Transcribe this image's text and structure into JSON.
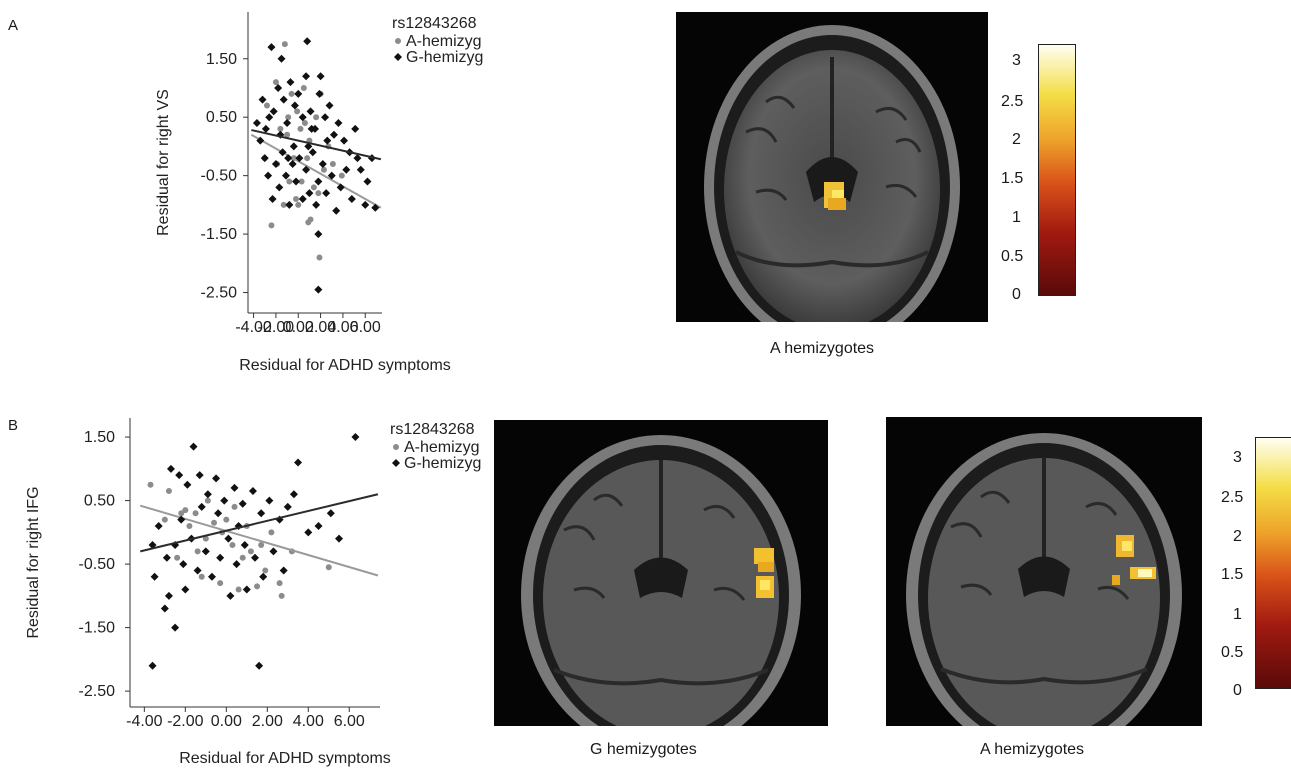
{
  "panel_labels": {
    "a": "A",
    "b": "B"
  },
  "colorbar_ticks": [
    "3",
    "2.5",
    "2",
    "1.5",
    "1",
    "0.5",
    "0"
  ],
  "brain_captions": {
    "a": "A hemizygotes",
    "b_left": "G hemizygotes",
    "b_right": "A hemizygotes"
  },
  "colors": {
    "a_hemizyg": "#8c8c8c",
    "g_hemizyg": "#111111",
    "fit_a": "#9a9a9a",
    "fit_g": "#2b2b2b"
  },
  "chart_data": [
    {
      "type": "scatter",
      "title": "",
      "xlabel": "Residual for ADHD symptoms",
      "ylabel": "Residual for right VS",
      "legend_title": "rs12843268",
      "legend_position": "top-right outside",
      "x_ticks": [
        "-4.00",
        "-2.00",
        "0.00",
        "2.00",
        "4.00",
        "6.00"
      ],
      "y_ticks": [
        "1.50",
        "0.50",
        "-0.50",
        "-1.50",
        "-2.50"
      ],
      "xlim": [
        -4.5,
        7.5
      ],
      "ylim": [
        -2.85,
        2.3
      ],
      "grid": false,
      "series": [
        {
          "name": "A-hemizyg",
          "marker": "circle",
          "points": [
            [
              -2.4,
              -1.35
            ],
            [
              -1.2,
              1.75
            ],
            [
              -1.0,
              0.2
            ],
            [
              0.0,
              -1.0
            ],
            [
              0.9,
              -1.3
            ],
            [
              1.1,
              -1.25
            ],
            [
              1.9,
              -1.9
            ],
            [
              -0.6,
              0.9
            ],
            [
              0.3,
              -0.6
            ],
            [
              1.4,
              -0.7
            ],
            [
              -1.6,
              0.3
            ],
            [
              -0.4,
              -0.2
            ],
            [
              0.6,
              0.4
            ],
            [
              2.3,
              -0.4
            ],
            [
              -2.8,
              0.7
            ],
            [
              -0.2,
              -0.9
            ],
            [
              1.0,
              0.1
            ],
            [
              -1.9,
              -0.3
            ],
            [
              0.5,
              1.0
            ],
            [
              3.1,
              -0.3
            ],
            [
              -0.8,
              -0.6
            ],
            [
              1.6,
              0.5
            ],
            [
              -2.0,
              1.1
            ],
            [
              0.2,
              0.3
            ],
            [
              2.7,
              0.0
            ],
            [
              -1.3,
              -1.0
            ],
            [
              3.9,
              -0.5
            ],
            [
              -0.9,
              0.5
            ],
            [
              0.8,
              -0.2
            ],
            [
              -3.0,
              -0.2
            ],
            [
              1.8,
              -0.8
            ],
            [
              -0.1,
              0.6
            ],
            [
              2.0,
              0.9
            ]
          ],
          "fit": [
            [
              -4.2,
              0.2
            ],
            [
              7.4,
              -1.05
            ]
          ]
        },
        {
          "name": "G-hemizyg",
          "marker": "diamond",
          "points": [
            [
              -2.4,
              1.7
            ],
            [
              -1.5,
              1.5
            ],
            [
              0.8,
              1.8
            ],
            [
              2.0,
              1.2
            ],
            [
              -2.6,
              0.5
            ],
            [
              -2.2,
              0.6
            ],
            [
              -1.8,
              1.0
            ],
            [
              -1.3,
              0.8
            ],
            [
              -1.0,
              0.4
            ],
            [
              -0.7,
              1.1
            ],
            [
              -0.3,
              0.7
            ],
            [
              0.0,
              0.9
            ],
            [
              0.4,
              0.5
            ],
            [
              0.7,
              1.2
            ],
            [
              1.1,
              0.6
            ],
            [
              1.5,
              0.3
            ],
            [
              1.9,
              0.9
            ],
            [
              2.4,
              0.5
            ],
            [
              2.8,
              0.7
            ],
            [
              3.2,
              0.2
            ],
            [
              3.6,
              0.4
            ],
            [
              4.1,
              0.1
            ],
            [
              4.6,
              -0.1
            ],
            [
              5.1,
              0.3
            ],
            [
              5.6,
              -0.4
            ],
            [
              6.2,
              -0.6
            ],
            [
              6.6,
              -0.2
            ],
            [
              -3.7,
              0.4
            ],
            [
              -3.4,
              0.1
            ],
            [
              -3.0,
              -0.2
            ],
            [
              -2.7,
              -0.5
            ],
            [
              -2.3,
              -0.9
            ],
            [
              -2.0,
              -0.3
            ],
            [
              -1.7,
              -0.7
            ],
            [
              -1.4,
              -0.1
            ],
            [
              -1.1,
              -0.5
            ],
            [
              -0.8,
              -1.0
            ],
            [
              -0.5,
              -0.3
            ],
            [
              -0.2,
              -0.6
            ],
            [
              0.1,
              -0.2
            ],
            [
              0.4,
              -0.9
            ],
            [
              0.7,
              -0.4
            ],
            [
              1.0,
              -0.8
            ],
            [
              1.3,
              -0.1
            ],
            [
              1.6,
              -1.0
            ],
            [
              1.8,
              -0.6
            ],
            [
              2.2,
              -0.3
            ],
            [
              2.5,
              -0.8
            ],
            [
              3.0,
              -0.5
            ],
            [
              3.4,
              -1.1
            ],
            [
              3.8,
              -0.7
            ],
            [
              4.3,
              -0.4
            ],
            [
              4.8,
              -0.9
            ],
            [
              5.3,
              -0.2
            ],
            [
              6.0,
              -1.0
            ],
            [
              6.9,
              -1.05
            ],
            [
              1.8,
              -1.5
            ],
            [
              1.8,
              -2.45
            ],
            [
              -3.2,
              0.8
            ],
            [
              -1.6,
              0.2
            ],
            [
              -0.4,
              0.0
            ],
            [
              0.9,
              0.0
            ],
            [
              2.6,
              0.1
            ],
            [
              -2.9,
              0.3
            ],
            [
              -0.9,
              -0.2
            ],
            [
              1.2,
              0.3
            ]
          ],
          "fit": [
            [
              -4.2,
              0.28
            ],
            [
              7.4,
              -0.22
            ]
          ]
        }
      ]
    },
    {
      "type": "scatter",
      "title": "",
      "xlabel": "Residual for ADHD symptoms",
      "ylabel": "Residual for right IFG",
      "legend_title": "rs12843268",
      "legend_position": "top-right outside",
      "x_ticks": [
        "-4.00",
        "-2.00",
        "0.00",
        "2.00",
        "4.00",
        "6.00"
      ],
      "y_ticks": [
        "1.50",
        "0.50",
        "-0.50",
        "-1.50",
        "-2.50"
      ],
      "xlim": [
        -4.7,
        7.5
      ],
      "ylim": [
        -2.75,
        1.8
      ],
      "grid": false,
      "series": [
        {
          "name": "A-hemizyg",
          "marker": "circle",
          "points": [
            [
              -3.7,
              0.75
            ],
            [
              -2.8,
              0.65
            ],
            [
              -2.0,
              0.35
            ],
            [
              -1.5,
              0.3
            ],
            [
              -1.0,
              -0.1
            ],
            [
              -0.6,
              0.15
            ],
            [
              -0.2,
              0.0
            ],
            [
              0.3,
              -0.2
            ],
            [
              0.8,
              -0.4
            ],
            [
              1.2,
              -0.3
            ],
            [
              1.9,
              -0.6
            ],
            [
              2.6,
              -0.8
            ],
            [
              3.2,
              -0.3
            ],
            [
              -2.4,
              -0.4
            ],
            [
              -1.2,
              -0.7
            ],
            [
              -0.3,
              -0.8
            ],
            [
              0.6,
              -0.9
            ],
            [
              1.5,
              -0.85
            ],
            [
              -1.8,
              0.1
            ],
            [
              0.0,
              0.2
            ],
            [
              2.2,
              0.0
            ],
            [
              5.0,
              -0.55
            ],
            [
              2.7,
              -1.0
            ],
            [
              -0.9,
              0.5
            ],
            [
              1.0,
              0.1
            ],
            [
              -3.0,
              0.2
            ],
            [
              0.4,
              0.4
            ],
            [
              1.7,
              -0.2
            ],
            [
              -1.4,
              -0.3
            ],
            [
              -2.2,
              0.3
            ]
          ],
          "fit": [
            [
              -4.2,
              0.42
            ],
            [
              7.4,
              -0.68
            ]
          ]
        },
        {
          "name": "G-hemizyg",
          "marker": "diamond",
          "points": [
            [
              6.3,
              1.5
            ],
            [
              -1.6,
              1.35
            ],
            [
              -2.7,
              1.0
            ],
            [
              -2.3,
              0.9
            ],
            [
              -1.9,
              0.75
            ],
            [
              -1.3,
              0.9
            ],
            [
              -0.9,
              0.6
            ],
            [
              -0.5,
              0.85
            ],
            [
              -0.1,
              0.5
            ],
            [
              0.4,
              0.7
            ],
            [
              0.8,
              0.45
            ],
            [
              1.3,
              0.65
            ],
            [
              1.7,
              0.3
            ],
            [
              2.1,
              0.5
            ],
            [
              2.6,
              0.2
            ],
            [
              3.0,
              0.4
            ],
            [
              3.5,
              1.1
            ],
            [
              4.0,
              0.0
            ],
            [
              4.5,
              0.1
            ],
            [
              5.1,
              0.3
            ],
            [
              5.5,
              -0.1
            ],
            [
              -3.6,
              -0.2
            ],
            [
              -3.3,
              0.1
            ],
            [
              -2.9,
              -0.4
            ],
            [
              -2.5,
              -0.2
            ],
            [
              -2.1,
              -0.5
            ],
            [
              -1.7,
              -0.1
            ],
            [
              -1.4,
              -0.6
            ],
            [
              -1.0,
              -0.3
            ],
            [
              -0.7,
              -0.7
            ],
            [
              -0.3,
              -0.4
            ],
            [
              0.1,
              -0.1
            ],
            [
              0.5,
              -0.5
            ],
            [
              0.9,
              -0.2
            ],
            [
              1.4,
              -0.4
            ],
            [
              1.8,
              -0.7
            ],
            [
              2.3,
              -0.3
            ],
            [
              2.8,
              -0.6
            ],
            [
              -3.5,
              -0.7
            ],
            [
              -2.8,
              -1.0
            ],
            [
              -3.0,
              -1.2
            ],
            [
              -2.0,
              -0.9
            ],
            [
              -2.5,
              -1.5
            ],
            [
              0.2,
              -1.0
            ],
            [
              1.0,
              -0.9
            ],
            [
              -3.6,
              -2.1
            ],
            [
              1.6,
              -2.1
            ],
            [
              -1.2,
              0.4
            ],
            [
              0.6,
              0.1
            ],
            [
              -0.4,
              0.3
            ],
            [
              3.3,
              0.6
            ],
            [
              -2.2,
              0.2
            ]
          ],
          "fit": [
            [
              -4.2,
              -0.3
            ],
            [
              7.4,
              0.6
            ]
          ]
        }
      ]
    }
  ]
}
